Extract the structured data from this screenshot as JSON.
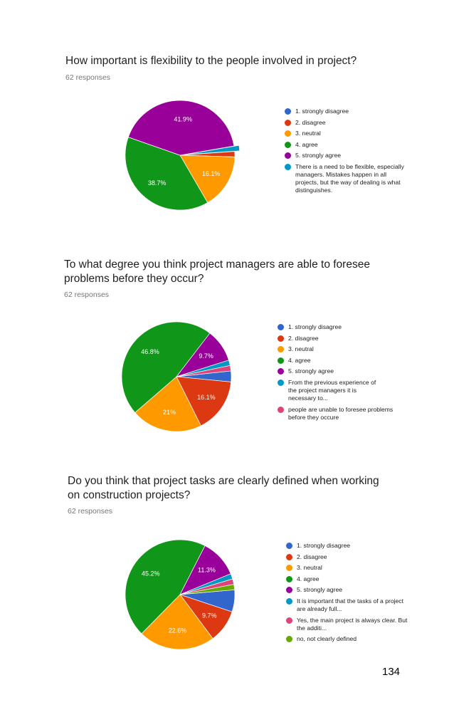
{
  "page_number": "134",
  "chart_data": [
    {
      "type": "pie",
      "title": "How important is flexibility to the people involved in project?",
      "subtitle": "62 responses",
      "categories": [
        "1. strongly disagree",
        "2. disagree",
        "3. neutral",
        "4. agree",
        "5. strongly agree",
        "There is a need to be flexible, especially managers. Mistakes happen in all projects, but the way of dealing is what distinguishes."
      ],
      "values": [
        0,
        1.6,
        16.1,
        38.7,
        41.9,
        1.6
      ],
      "labels": [
        "",
        "",
        "16.1%",
        "38.7%",
        "41.9%",
        ""
      ],
      "colors": [
        "#3366cc",
        "#dc3912",
        "#ff9900",
        "#109618",
        "#990099",
        "#0099c6"
      ],
      "exploded_index": 5,
      "legend_position": "right"
    },
    {
      "type": "pie",
      "title": "To what degree you think project managers are able to foresee problems before they occur?",
      "subtitle": "62 responses",
      "categories": [
        "1. strongly disagree",
        "2. disagree",
        "3. neutral",
        "4. agree",
        "5. strongly agree",
        "From the previous experience of the project managers it is necessary to...",
        "people are unable to foresee problems before they occure"
      ],
      "values": [
        3.2,
        16.1,
        21,
        46.8,
        9.7,
        1.6,
        1.6
      ],
      "labels": [
        "",
        "16.1%",
        "21%",
        "46.8%",
        "9.7%",
        "",
        ""
      ],
      "colors": [
        "#3366cc",
        "#dc3912",
        "#ff9900",
        "#109618",
        "#990099",
        "#0099c6",
        "#dd4477"
      ],
      "legend_position": "right"
    },
    {
      "type": "pie",
      "title": "Do you think that project tasks are clearly defined when working on construction projects?",
      "subtitle": "62 responses",
      "categories": [
        "1. strongly disagree",
        "2. disagree",
        "3. neutral",
        "4. agree",
        "5. strongly agree",
        "It is important that the tasks of a project are already full...",
        "Yes, the main project is always clear. But the additi...",
        "no, not clearly defined"
      ],
      "values": [
        6.5,
        9.7,
        22.6,
        45.2,
        11.3,
        1.6,
        1.6,
        1.6
      ],
      "labels": [
        "",
        "9.7%",
        "22.6%",
        "45.2%",
        "11.3%",
        "",
        "",
        ""
      ],
      "colors": [
        "#3366cc",
        "#dc3912",
        "#ff9900",
        "#109618",
        "#990099",
        "#0099c6",
        "#dd4477",
        "#66aa00"
      ],
      "legend_position": "right"
    }
  ],
  "legend_text": [
    [
      "1. strongly disagree",
      "2. disagree",
      "3. neutral",
      "4. agree",
      "5. strongly agree",
      "There is a need to be flexible, especially managers. Mistakes happen in all projects, but the way of dealing is what distinguishes."
    ],
    [
      "1. strongly disagree",
      "2. disagree",
      "3. neutral",
      "4. agree",
      "5. strongly agree",
      "From the previous experience of the project managers it is necessary to...",
      "people are unable to foresee problems before they occure"
    ],
    [
      "1. strongly disagree",
      "2. disagree",
      "3. neutral",
      "4. agree",
      "5. strongly agree",
      "It is important that the tasks of a project are already full...",
      "Yes, the main project is always clear. But the additi...",
      "no, not clearly defined"
    ]
  ]
}
